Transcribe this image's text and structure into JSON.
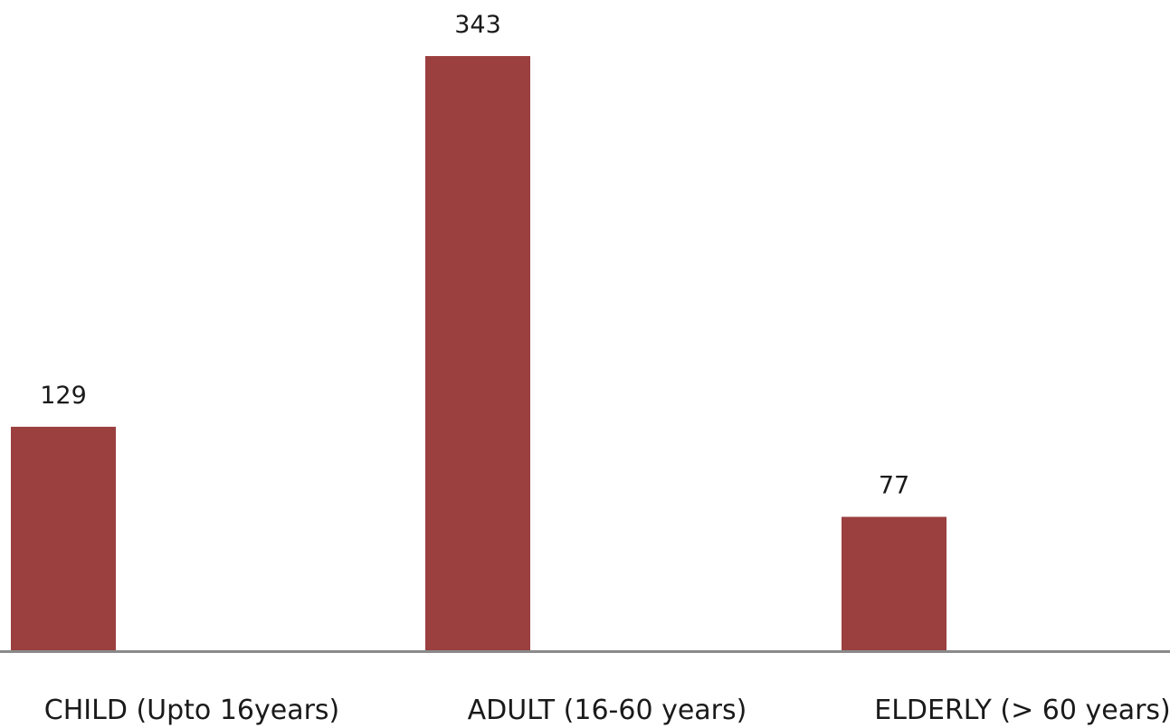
{
  "colors": {
    "bar": "#9b3f3f",
    "axis": "#8a8a8a",
    "text": "#1a1a1a",
    "background": "#ffffff"
  },
  "chart_data": {
    "type": "bar",
    "title": "",
    "xlabel": "",
    "ylabel": "",
    "categories": [
      "CHILD (Upto 16years)",
      "ADULT (16-60 years)",
      "ELDERLY (> 60 years)"
    ],
    "values": [
      129,
      343,
      77
    ],
    "data_labels": [
      "129",
      "343",
      "77"
    ],
    "ylim": [
      0,
      343
    ],
    "grid": false,
    "legend": "none"
  }
}
